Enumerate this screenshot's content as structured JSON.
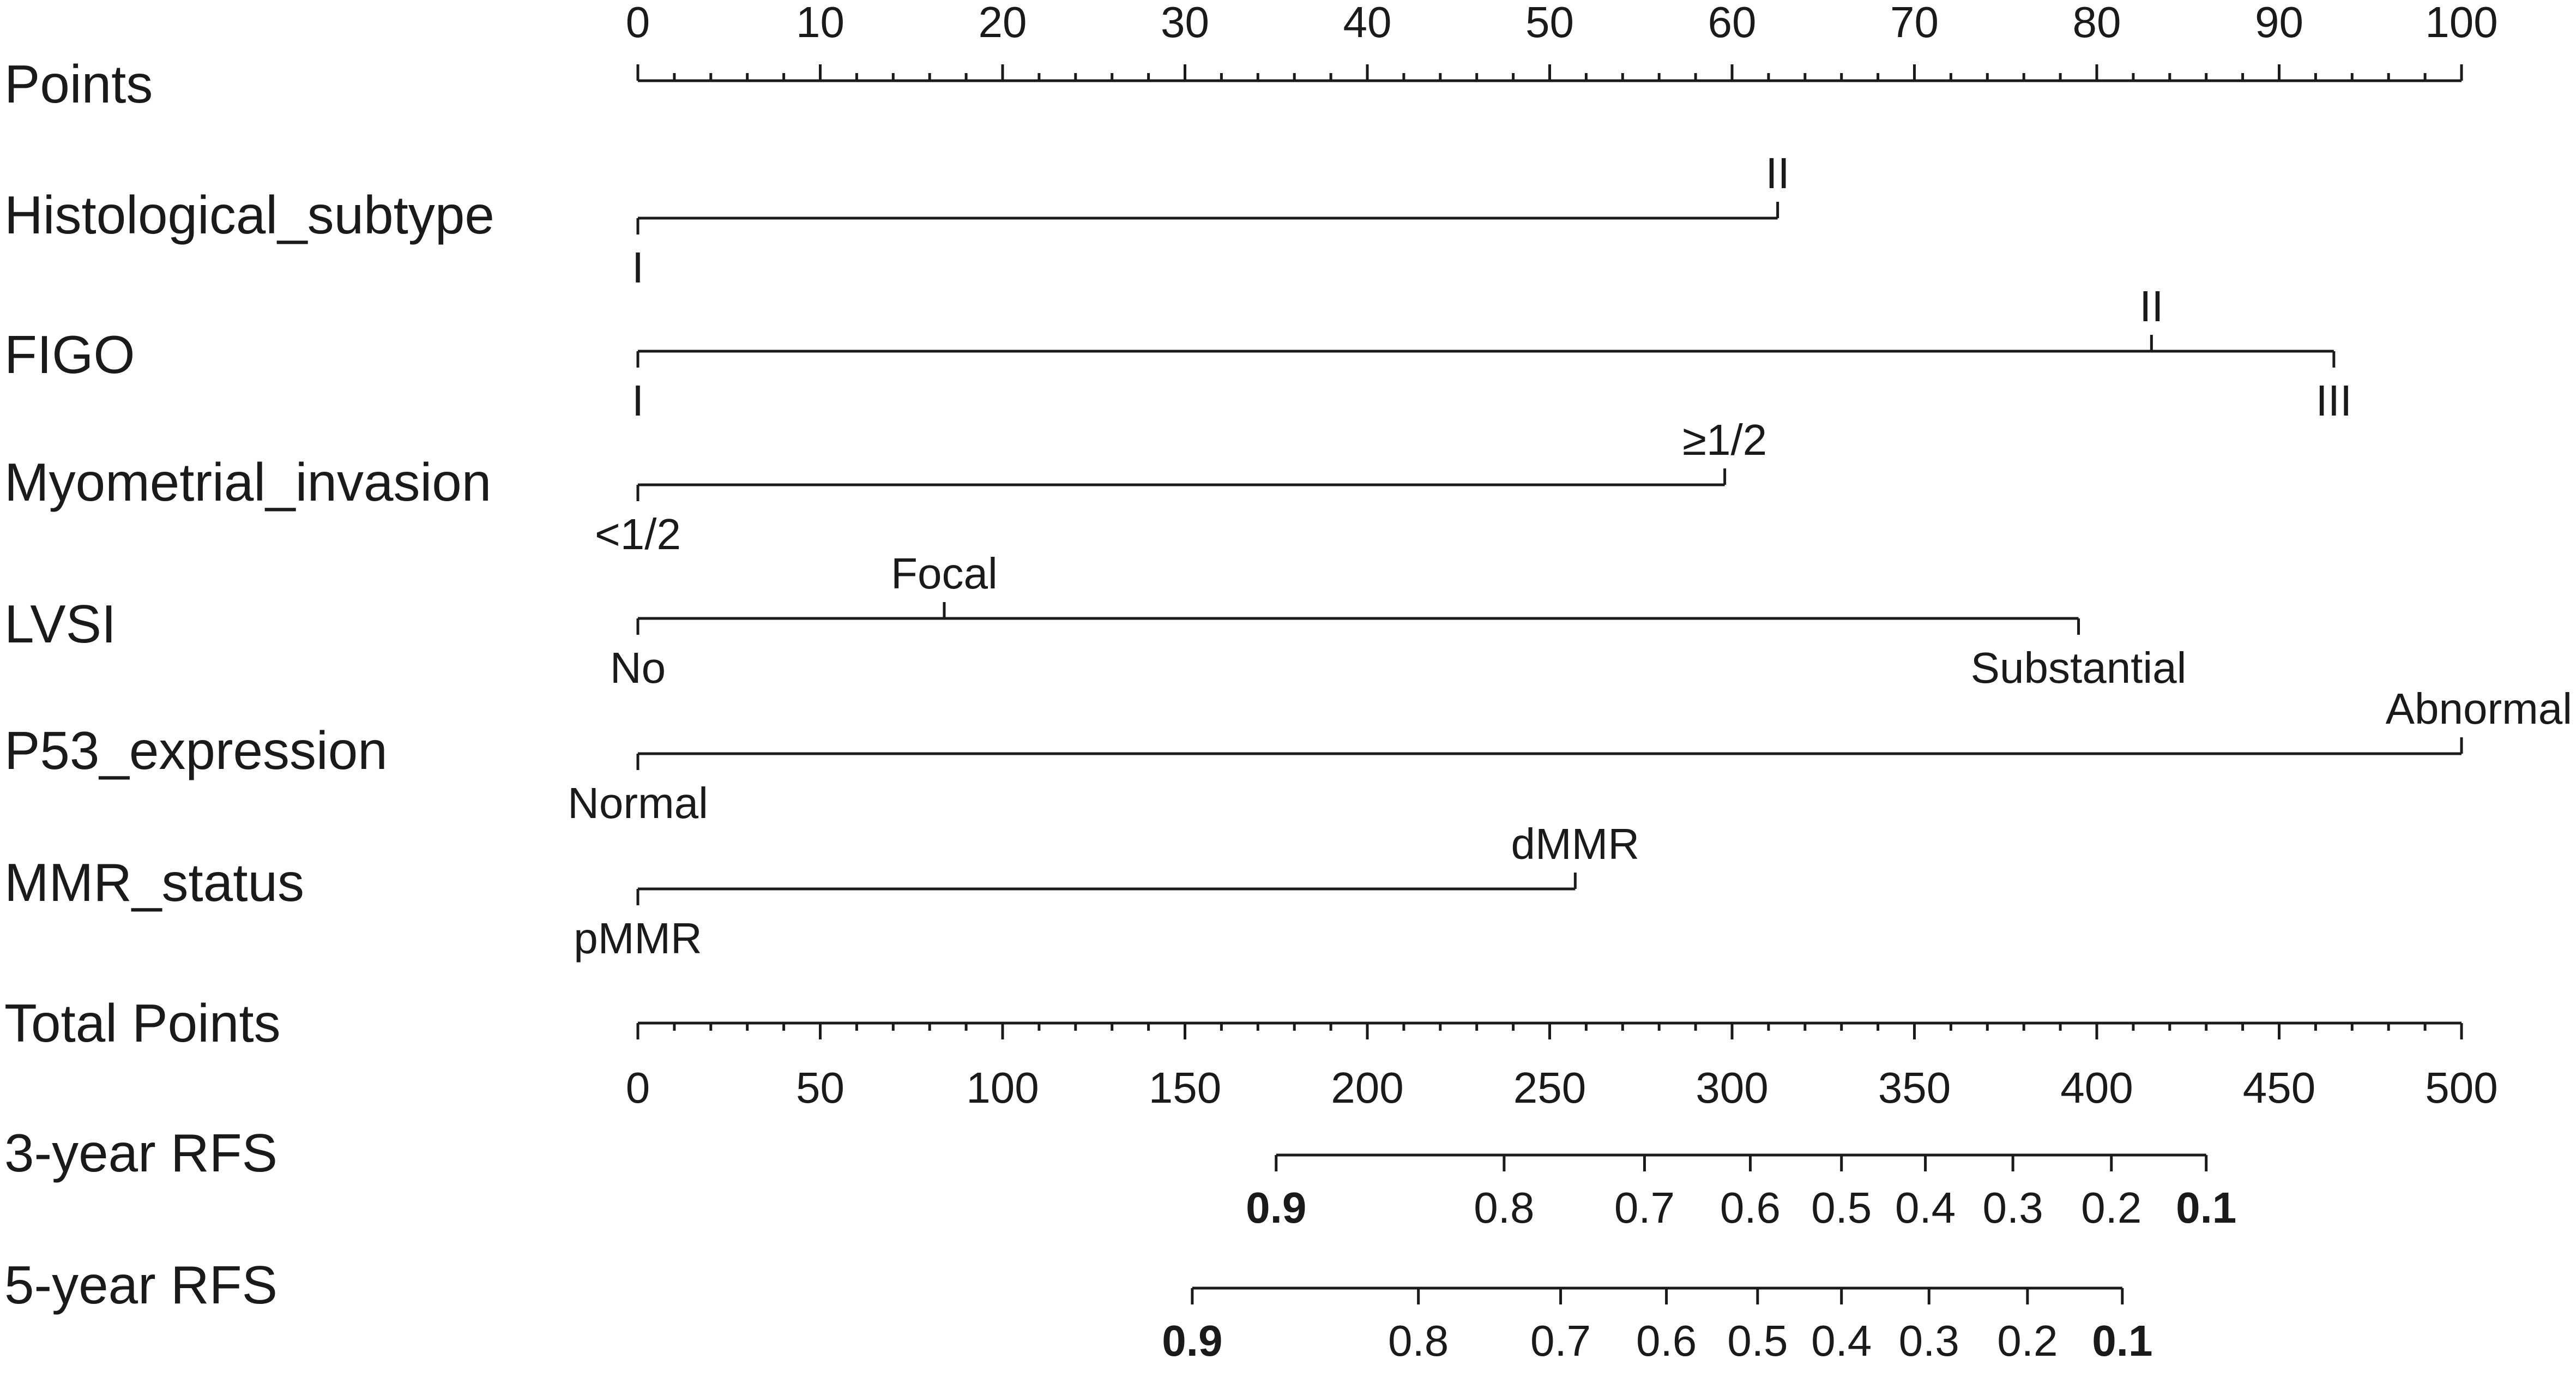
{
  "chart_data": {
    "type": "nomogram",
    "title": "",
    "colors": {
      "ink": "#1a1a1a",
      "background": "#ffffff"
    },
    "scales": [
      {
        "id": "points",
        "label": "Points",
        "kind": "axis",
        "range": [
          0,
          100
        ],
        "major": [
          0,
          10,
          20,
          30,
          40,
          50,
          60,
          70,
          80,
          90,
          100
        ],
        "major_labels": [
          "0",
          "10",
          "20",
          "30",
          "40",
          "50",
          "60",
          "70",
          "80",
          "90",
          "100"
        ],
        "minor_step": 2,
        "labels_position": "above"
      },
      {
        "id": "histological-subtype",
        "label": "Histological_subtype",
        "kind": "variable",
        "levels": [
          {
            "name": "I",
            "points": 0,
            "label_position": "below"
          },
          {
            "name": "II",
            "points": 62.5,
            "label_position": "above"
          }
        ]
      },
      {
        "id": "figo",
        "label": "FIGO",
        "kind": "variable",
        "levels": [
          {
            "name": "I",
            "points": 0,
            "label_position": "below"
          },
          {
            "name": "II",
            "points": 83,
            "label_position": "above"
          },
          {
            "name": "III",
            "points": 93,
            "label_position": "below"
          }
        ]
      },
      {
        "id": "myometrial-invasion",
        "label": "Myometrial_invasion",
        "kind": "variable",
        "levels": [
          {
            "name": "<1/2",
            "points": 0,
            "label_position": "below"
          },
          {
            "name": "≥1/2",
            "points": 59.6,
            "label_position": "above"
          }
        ]
      },
      {
        "id": "lvsi",
        "label": "LVSI",
        "kind": "variable",
        "levels": [
          {
            "name": "No",
            "points": 0,
            "label_position": "below"
          },
          {
            "name": "Focal",
            "points": 16.8,
            "label_position": "above"
          },
          {
            "name": "Substantial",
            "points": 79,
            "label_position": "below"
          }
        ]
      },
      {
        "id": "p53-expression",
        "label": "P53_expression",
        "kind": "variable",
        "levels": [
          {
            "name": "Normal",
            "points": 0,
            "label_position": "below"
          },
          {
            "name": "Abnormal",
            "points": 100,
            "label_position": "above"
          }
        ]
      },
      {
        "id": "mmr-status",
        "label": "MMR_status",
        "kind": "variable",
        "levels": [
          {
            "name": "pMMR",
            "points": 0,
            "label_position": "below"
          },
          {
            "name": "dMMR",
            "points": 51.4,
            "label_position": "above"
          }
        ]
      },
      {
        "id": "total-points",
        "label": "Total Points",
        "kind": "axis",
        "range": [
          0,
          500
        ],
        "major": [
          0,
          50,
          100,
          150,
          200,
          250,
          300,
          350,
          400,
          450,
          500
        ],
        "major_labels": [
          "0",
          "50",
          "100",
          "150",
          "200",
          "250",
          "300",
          "350",
          "400",
          "450",
          "500"
        ],
        "minor_step": 10,
        "labels_position": "below",
        "points_per_unit": 5
      },
      {
        "id": "rfs-3yr",
        "label": "3-year RFS",
        "kind": "probability",
        "ticks": [
          {
            "value": "0.9",
            "total_points": 175
          },
          {
            "value": "0.8",
            "total_points": 237.5
          },
          {
            "value": "0.7",
            "total_points": 276
          },
          {
            "value": "0.6",
            "total_points": 305
          },
          {
            "value": "0.5",
            "total_points": 330
          },
          {
            "value": "0.4",
            "total_points": 353
          },
          {
            "value": "0.3",
            "total_points": 377
          },
          {
            "value": "0.2",
            "total_points": 404
          },
          {
            "value": "0.1",
            "total_points": 430
          }
        ]
      },
      {
        "id": "rfs-5yr",
        "label": "5-year RFS",
        "kind": "probability",
        "ticks": [
          {
            "value": "0.9",
            "total_points": 152
          },
          {
            "value": "0.8",
            "total_points": 214
          },
          {
            "value": "0.7",
            "total_points": 253
          },
          {
            "value": "0.6",
            "total_points": 282
          },
          {
            "value": "0.5",
            "total_points": 307
          },
          {
            "value": "0.4",
            "total_points": 330
          },
          {
            "value": "0.3",
            "total_points": 354
          },
          {
            "value": "0.2",
            "total_points": 381
          },
          {
            "value": "0.1",
            "total_points": 407
          }
        ]
      }
    ]
  }
}
